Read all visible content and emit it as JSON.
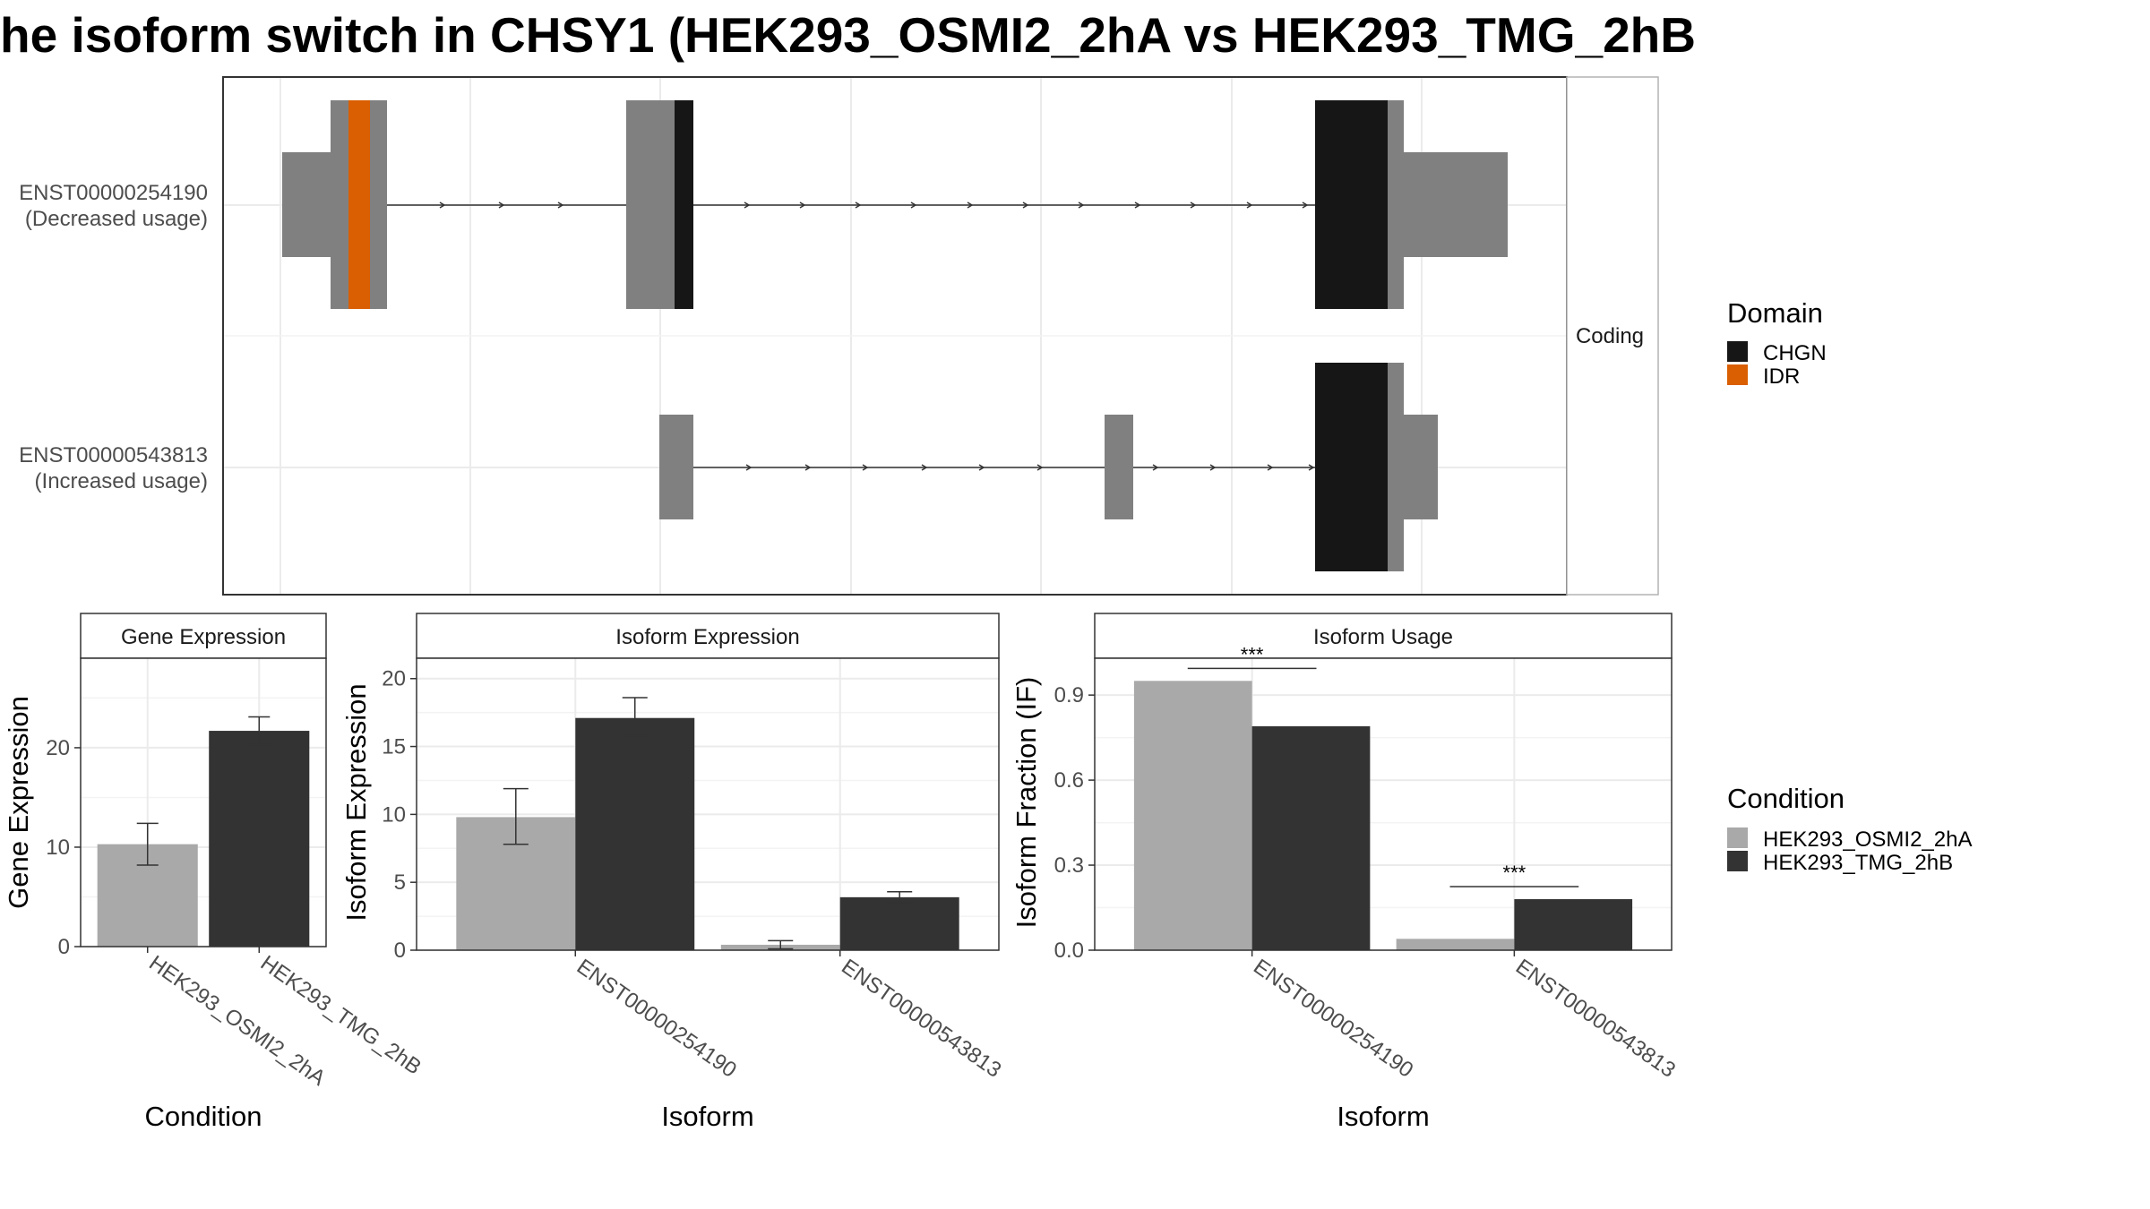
{
  "title": "he isoform switch in CHSY1 (HEK293_OSMI2_2hA vs HEK293_TMG_2hB",
  "colors": {
    "condition_a": "#a9a9a9",
    "condition_b": "#333333",
    "exon": "#808080",
    "domain_chgn": "#161616",
    "domain_idr": "#d95f02",
    "grid": "#ebebeb",
    "panel_border": "#333333"
  },
  "chart_data": [
    {
      "type": "gene-structure",
      "facet_label": "Coding",
      "legend_title": "Domain",
      "legend": [
        {
          "label": "CHGN",
          "color": "#161616"
        },
        {
          "label": "IDR",
          "color": "#d95f02"
        }
      ],
      "transcripts": [
        {
          "id": "ENST00000254190",
          "status": "(Decreased usage)"
        },
        {
          "id": "ENST00000543813",
          "status": "(Increased usage)"
        }
      ]
    },
    {
      "type": "bar",
      "strip": "Gene Expression",
      "xlabel": "Condition",
      "ylabel": "Gene Expression",
      "ylim": [
        0,
        29
      ],
      "yticks": [
        0,
        10,
        20
      ],
      "categories": [
        "HEK293_OSMI2_2hA",
        "HEK293_TMG_2hB"
      ],
      "values": [
        10.3,
        21.7
      ],
      "errors": [
        [
          8.2,
          12.4
        ],
        [
          20.3,
          23.1
        ]
      ]
    },
    {
      "type": "bar",
      "strip": "Isoform Expression",
      "xlabel": "Isoform",
      "ylabel": "Isoform Expression",
      "ylim": [
        0,
        21.5
      ],
      "yticks": [
        0,
        5,
        10,
        15,
        20
      ],
      "categories": [
        "ENST00000254190",
        "ENST00000543813"
      ],
      "series": [
        {
          "name": "HEK293_OSMI2_2hA",
          "values": [
            9.8,
            0.4
          ],
          "errors": [
            [
              7.8,
              11.9
            ],
            [
              0.1,
              0.7
            ]
          ]
        },
        {
          "name": "HEK293_TMG_2hB",
          "values": [
            17.1,
            3.9
          ],
          "errors": [
            [
              15.8,
              18.6
            ],
            [
              3.5,
              4.3
            ]
          ]
        }
      ]
    },
    {
      "type": "bar",
      "strip": "Isoform Usage",
      "xlabel": "Isoform",
      "ylabel": "Isoform Fraction (IF)",
      "ylim": [
        0,
        1.03
      ],
      "yticks": [
        "0.0",
        "0.3",
        "0.6",
        "0.9"
      ],
      "categories": [
        "ENST00000254190",
        "ENST00000543813"
      ],
      "series": [
        {
          "name": "HEK293_OSMI2_2hA",
          "values": [
            0.95,
            0.04
          ]
        },
        {
          "name": "HEK293_TMG_2hB",
          "values": [
            0.79,
            0.18
          ]
        }
      ],
      "significance": [
        "***",
        "***"
      ]
    }
  ],
  "condition_legend": {
    "title": "Condition",
    "items": [
      {
        "label": "HEK293_OSMI2_2hA",
        "color": "#a9a9a9"
      },
      {
        "label": "HEK293_TMG_2hB",
        "color": "#333333"
      }
    ]
  }
}
